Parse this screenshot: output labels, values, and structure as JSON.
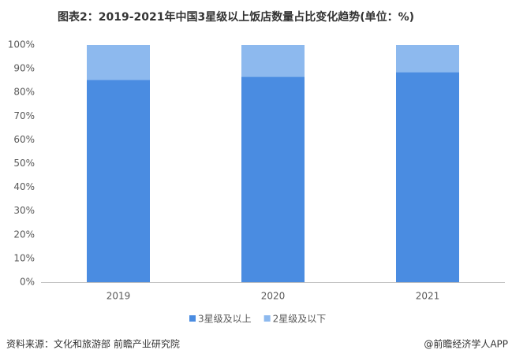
{
  "chart_data": {
    "type": "stacked_bar",
    "title": "图表2：2019-2021年中国3星级以上饭店数量占比变化趋势(单位：%)",
    "source": "资料来源：文化和旅游部 前瞻产业研究院",
    "credit": "@前瞻经济学人APP",
    "categories": [
      "2019",
      "2020",
      "2021"
    ],
    "series": [
      {
        "name": "3星级及以上",
        "color": "#4a8ce1",
        "values": [
          85.3,
          86.6,
          88.5
        ]
      },
      {
        "name": "2星级及以下",
        "color": "#8db9ee",
        "values": [
          14.7,
          13.4,
          11.5
        ]
      }
    ],
    "ylim": [
      0,
      100
    ],
    "yticks": [
      {
        "value": 0,
        "label": "0%"
      },
      {
        "value": 10,
        "label": "10%"
      },
      {
        "value": 20,
        "label": "20%"
      },
      {
        "value": 30,
        "label": "30%"
      },
      {
        "value": 40,
        "label": "40%"
      },
      {
        "value": 50,
        "label": "50%"
      },
      {
        "value": 60,
        "label": "60%"
      },
      {
        "value": 70,
        "label": "70%"
      },
      {
        "value": 80,
        "label": "80%"
      },
      {
        "value": 90,
        "label": "90%"
      },
      {
        "value": 100,
        "label": "100%"
      }
    ],
    "grid": false,
    "legend": "bottom"
  }
}
